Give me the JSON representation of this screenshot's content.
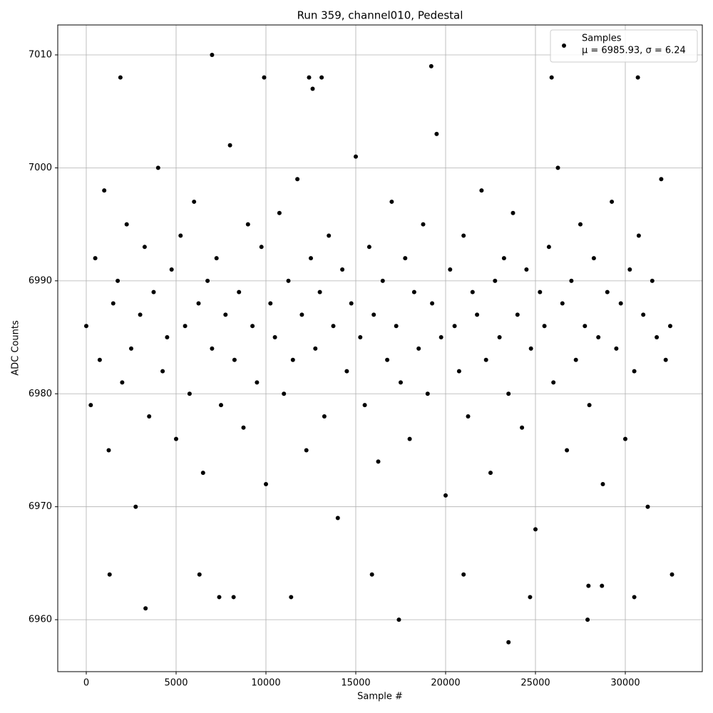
{
  "chart_data": {
    "type": "scatter",
    "title": "Run 359, channel010, Pedestal",
    "x_label": "Sample #",
    "y_label": "ADC Counts",
    "legend_note": "μ = 6985.93, σ = 6.24",
    "legend_position": "upper right",
    "grid": true,
    "xlim": [
      -1587,
      34286
    ],
    "ylim": [
      6955.4,
      7012.65
    ],
    "xticks": [
      0,
      5000,
      10000,
      15000,
      20000,
      25000,
      30000
    ],
    "yticks": [
      6960,
      6970,
      6980,
      6990,
      7000,
      7010
    ],
    "series": [
      {
        "name": "Samples",
        "color": "#000000",
        "x": [
          0,
          250,
          500,
          750,
          1000,
          1250,
          1500,
          1750,
          2000,
          2250,
          2500,
          2750,
          3000,
          3250,
          3500,
          3750,
          4000,
          4250,
          4500,
          4750,
          5000,
          5250,
          5500,
          5750,
          6000,
          6250,
          6500,
          6750,
          7000,
          7250,
          7500,
          7750,
          8000,
          8250,
          8500,
          8750,
          9000,
          9250,
          9500,
          9750,
          10000,
          10250,
          10500,
          10750,
          11000,
          11250,
          11500,
          11750,
          12000,
          12250,
          12500,
          12750,
          13000,
          13250,
          13500,
          13750,
          14000,
          14250,
          14500,
          14750,
          15000,
          15250,
          15500,
          15750,
          16000,
          16250,
          16500,
          16750,
          17000,
          17250,
          17500,
          17750,
          18000,
          18250,
          18500,
          18750,
          19000,
          19250,
          19500,
          19750,
          20000,
          20250,
          20500,
          20750,
          21000,
          21250,
          21500,
          21750,
          22000,
          22250,
          22500,
          22750,
          23000,
          23250,
          23500,
          23750,
          24000,
          24250,
          24500,
          24750,
          25000,
          25250,
          25500,
          25750,
          26000,
          26250,
          26500,
          26750,
          27000,
          27250,
          27500,
          27750,
          28000,
          28250,
          28500,
          28750,
          29000,
          29250,
          29500,
          29750,
          30000,
          30250,
          30500,
          30750,
          31000,
          31250,
          31500,
          31750,
          32000,
          32250,
          32500,
          1900,
          7000,
          9900,
          12400,
          13100,
          19200,
          25900,
          30700,
          12600,
          3300,
          17400,
          23500,
          27900,
          1300,
          11400,
          7400,
          8200,
          24700,
          30500,
          27950,
          28700,
          32600,
          15900,
          21000,
          6300
        ],
        "values": [
          6986,
          6979,
          6992,
          6983,
          6998,
          6975,
          6988,
          6990,
          6981,
          6995,
          6984,
          6970,
          6987,
          6993,
          6978,
          6989,
          7000,
          6982,
          6985,
          6991,
          6976,
          6994,
          6986,
          6980,
          6997,
          6988,
          6973,
          6990,
          6984,
          6992,
          6979,
          6987,
          7002,
          6983,
          6989,
          6977,
          6995,
          6986,
          6981,
          6993,
          6972,
          6988,
          6985,
          6996,
          6980,
          6990,
          6983,
          6999,
          6987,
          6975,
          6992,
          6984,
          6989,
          6978,
          6994,
          6986,
          6969,
          6991,
          6982,
          6988,
          7001,
          6985,
          6979,
          6993,
          6987,
          6974,
          6990,
          6983,
          6997,
          6986,
          6981,
          6992,
          6976,
          6989,
          6984,
          6995,
          6980,
          6988,
          7003,
          6985,
          6971,
          6991,
          6986,
          6982,
          6994,
          6978,
          6989,
          6987,
          6998,
          6983,
          6973,
          6990,
          6985,
          6992,
          6980,
          6996,
          6987,
          6977,
          6991,
          6984,
          6968,
          6989,
          6986,
          6993,
          6981,
          7000,
          6988,
          6975,
          6990,
          6983,
          6995,
          6986,
          6979,
          6992,
          6985,
          6972,
          6989,
          6997,
          6984,
          6988,
          6976,
          6991,
          6982,
          6994,
          6987,
          6970,
          6990,
          6985,
          6999,
          6983,
          6986,
          7008,
          7010,
          7008,
          7008,
          7008,
          7009,
          7008,
          7008,
          7007,
          6961,
          6960,
          6958,
          6960,
          6964,
          6962,
          6962,
          6962,
          6962,
          6962,
          6963,
          6963,
          6964,
          6964,
          6964,
          6964
        ]
      }
    ]
  }
}
